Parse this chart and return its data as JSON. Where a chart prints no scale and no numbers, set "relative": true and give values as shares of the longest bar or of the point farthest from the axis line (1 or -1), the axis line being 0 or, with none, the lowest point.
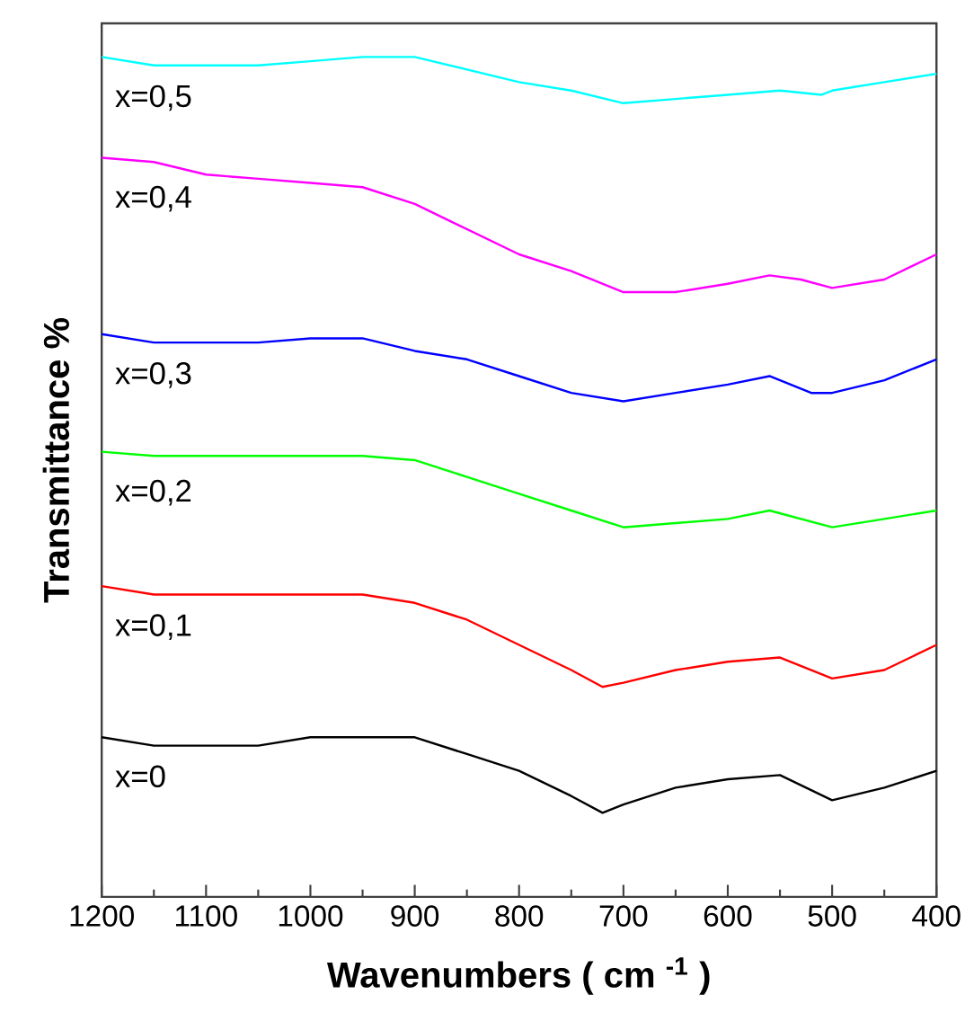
{
  "chart_data": {
    "type": "line",
    "relative": true,
    "xlabel": "Wavenumbers ( cm $^{-1}$ )",
    "ylabel": "Transmittance %",
    "xlim": [
      1200,
      400
    ],
    "xticks": [
      1200,
      {
        "value": 1150,
        "label": null
      },
      1100,
      {
        "value": 1050,
        "label": null
      },
      1000,
      {
        "value": 950,
        "label": null
      },
      900,
      {
        "value": 850,
        "label": null
      },
      800,
      {
        "value": 750,
        "label": null
      },
      700,
      {
        "value": 650,
        "label": null
      },
      600,
      {
        "value": 550,
        "label": null
      },
      500,
      {
        "value": 450,
        "label": null
      },
      400
    ],
    "grid": false,
    "legend": false,
    "marker": "none",
    "series": [
      {
        "name": "x=0",
        "color": "#000000",
        "x": [
          1200,
          1150,
          1100,
          1050,
          1000,
          950,
          900,
          850,
          800,
          750,
          720,
          700,
          650,
          600,
          550,
          500,
          450,
          400
        ],
        "values": [
          0.19,
          0.18,
          0.18,
          0.18,
          0.19,
          0.19,
          0.19,
          0.17,
          0.15,
          0.12,
          0.1,
          0.11,
          0.13,
          0.14,
          0.145,
          0.115,
          0.13,
          0.15
        ]
      },
      {
        "name": "x=0,1",
        "color": "#ff0000",
        "x": [
          1200,
          1150,
          1100,
          1050,
          1000,
          950,
          900,
          850,
          800,
          750,
          720,
          700,
          650,
          600,
          550,
          500,
          450,
          400
        ],
        "values": [
          0.37,
          0.36,
          0.36,
          0.36,
          0.36,
          0.36,
          0.35,
          0.33,
          0.3,
          0.27,
          0.25,
          0.255,
          0.27,
          0.28,
          0.285,
          0.26,
          0.27,
          0.3
        ]
      },
      {
        "name": "x=0,2",
        "color": "#00ff00",
        "x": [
          1200,
          1150,
          1100,
          1050,
          1000,
          950,
          900,
          850,
          800,
          750,
          700,
          650,
          600,
          560,
          500,
          450,
          400
        ],
        "values": [
          0.53,
          0.525,
          0.525,
          0.525,
          0.525,
          0.525,
          0.52,
          0.5,
          0.48,
          0.46,
          0.44,
          0.445,
          0.45,
          0.46,
          0.44,
          0.45,
          0.46
        ]
      },
      {
        "name": "x=0,3",
        "color": "#0000ff",
        "x": [
          1200,
          1150,
          1100,
          1050,
          1000,
          950,
          900,
          850,
          800,
          750,
          700,
          650,
          600,
          560,
          520,
          500,
          450,
          400
        ],
        "values": [
          0.67,
          0.66,
          0.66,
          0.66,
          0.665,
          0.665,
          0.65,
          0.64,
          0.62,
          0.6,
          0.59,
          0.6,
          0.61,
          0.62,
          0.6,
          0.6,
          0.615,
          0.64
        ]
      },
      {
        "name": "x=0,4",
        "color": "#ff00ff",
        "x": [
          1200,
          1150,
          1100,
          1050,
          1000,
          950,
          900,
          850,
          800,
          750,
          700,
          650,
          600,
          560,
          530,
          500,
          450,
          400
        ],
        "values": [
          0.88,
          0.875,
          0.86,
          0.855,
          0.85,
          0.845,
          0.825,
          0.795,
          0.765,
          0.745,
          0.72,
          0.72,
          0.73,
          0.74,
          0.735,
          0.725,
          0.735,
          0.765
        ]
      },
      {
        "name": "x=0,5",
        "color": "#00ffff",
        "x": [
          1200,
          1150,
          1100,
          1050,
          1000,
          950,
          900,
          850,
          800,
          750,
          700,
          650,
          600,
          550,
          510,
          500,
          450,
          400
        ],
        "values": [
          1.0,
          0.99,
          0.99,
          0.99,
          0.995,
          1.0,
          1.0,
          0.985,
          0.97,
          0.96,
          0.945,
          0.95,
          0.955,
          0.96,
          0.955,
          0.96,
          0.97,
          0.98
        ]
      }
    ]
  }
}
